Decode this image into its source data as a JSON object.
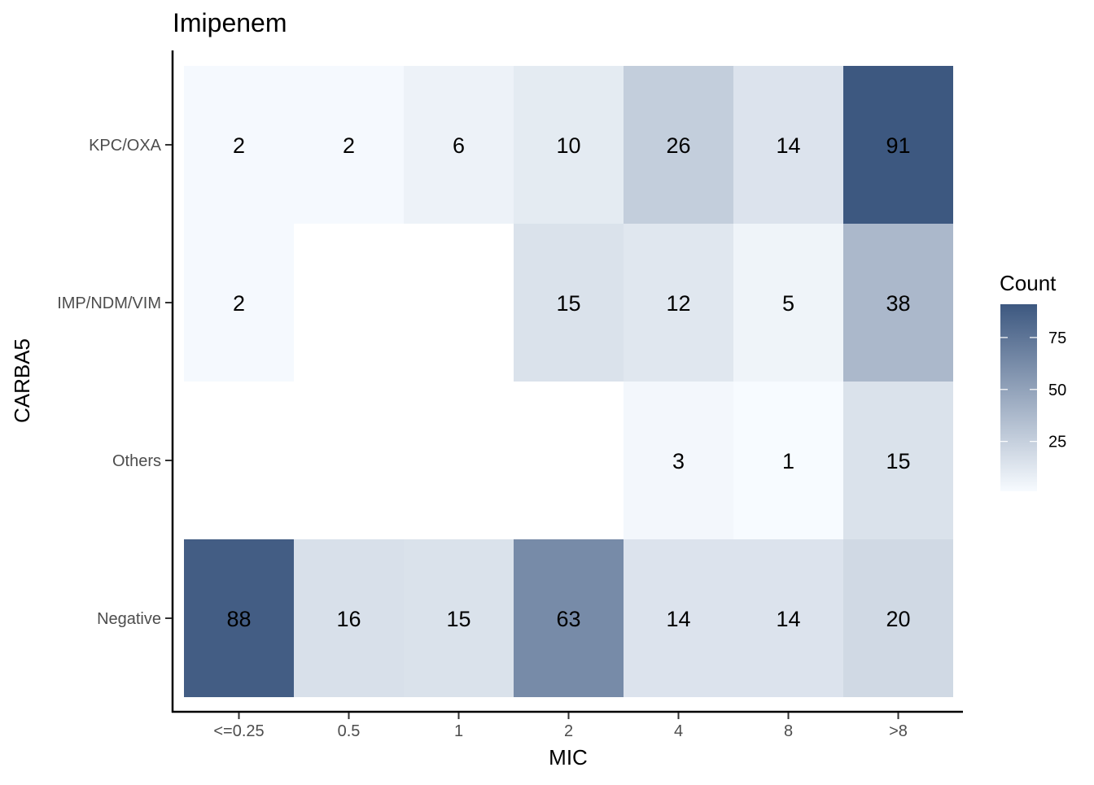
{
  "chart_data": {
    "type": "heatmap",
    "title": "Imipenem",
    "xlabel": "MIC",
    "ylabel": "CARBA5",
    "x_categories": [
      "<=0.25",
      "0.5",
      "1",
      "2",
      "4",
      "8",
      ">8"
    ],
    "y_categories": [
      "KPC/OXA",
      "IMP/NDM/VIM",
      "Others",
      "Negative"
    ],
    "values": [
      [
        2,
        2,
        6,
        10,
        26,
        14,
        91
      ],
      [
        2,
        null,
        null,
        15,
        12,
        5,
        38
      ],
      [
        null,
        null,
        null,
        null,
        3,
        1,
        15
      ],
      [
        88,
        16,
        15,
        63,
        14,
        14,
        20
      ]
    ],
    "legend": {
      "title": "Count",
      "placement": "right",
      "ticks": [
        25,
        50,
        75
      ],
      "range": [
        1,
        91
      ],
      "low_color": "#f7fbff",
      "high_color": "#3d5880"
    },
    "grid": false
  }
}
